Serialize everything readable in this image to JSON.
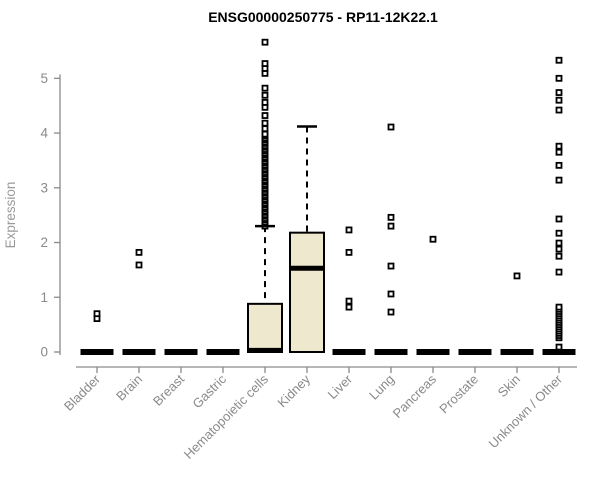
{
  "chart_data": {
    "type": "boxplot",
    "title": "ENSG00000250775 - RP11-12K22.1",
    "ylabel": "Expression",
    "xlabel": "",
    "ylim": [
      0,
      5.7
    ],
    "yticks": [
      0,
      1,
      2,
      3,
      4,
      5
    ],
    "grid": false,
    "legend": false,
    "colors": {
      "axis": "#8a8a8a",
      "box_fill": "#ede8ce",
      "box_stroke": "#000000",
      "outlier_fill": "#ffffff",
      "title": "#000000"
    },
    "categories": [
      "Bladder",
      "Brain",
      "Breast",
      "Gastric",
      "Hematopoietic cells",
      "Kidney",
      "Liver",
      "Lung",
      "Pancreas",
      "Prostate",
      "Skin",
      "Unknown / Other"
    ],
    "boxes": [
      {
        "category": "Bladder",
        "q1": 0,
        "median": 0,
        "q3": 0,
        "whisker_low": 0,
        "whisker_high": 0,
        "outliers": [
          0.61,
          0.7
        ]
      },
      {
        "category": "Brain",
        "q1": 0,
        "median": 0,
        "q3": 0,
        "whisker_low": 0,
        "whisker_high": 0,
        "outliers": [
          1.59,
          1.82
        ]
      },
      {
        "category": "Breast",
        "q1": 0,
        "median": 0,
        "q3": 0,
        "whisker_low": 0,
        "whisker_high": 0,
        "outliers": []
      },
      {
        "category": "Gastric",
        "q1": 0,
        "median": 0,
        "q3": 0,
        "whisker_low": 0,
        "whisker_high": 0,
        "outliers": []
      },
      {
        "category": "Hematopoietic cells",
        "q1": 0,
        "median": 0.03,
        "q3": 0.88,
        "whisker_low": 0,
        "whisker_high": 2.3,
        "outliers": [
          2.3,
          2.34,
          2.37,
          2.41,
          2.44,
          2.48,
          2.51,
          2.55,
          2.58,
          2.62,
          2.65,
          2.69,
          2.72,
          2.76,
          2.79,
          2.83,
          2.86,
          2.9,
          2.93,
          2.97,
          3.0,
          3.04,
          3.07,
          3.11,
          3.14,
          3.18,
          3.21,
          3.25,
          3.28,
          3.32,
          3.35,
          3.39,
          3.42,
          3.46,
          3.49,
          3.53,
          3.56,
          3.6,
          3.63,
          3.67,
          3.7,
          3.74,
          3.77,
          3.81,
          3.84,
          3.88,
          3.91,
          3.95,
          3.98,
          4.08,
          4.18,
          4.32,
          4.47,
          4.56,
          4.69,
          4.82,
          5.09,
          5.18,
          5.27,
          5.66
        ]
      },
      {
        "category": "Kidney",
        "q1": 0,
        "median": 1.53,
        "q3": 2.18,
        "whisker_low": 0,
        "whisker_high": 4.12,
        "outliers": []
      },
      {
        "category": "Liver",
        "q1": 0,
        "median": 0,
        "q3": 0,
        "whisker_low": 0,
        "whisker_high": 0,
        "outliers": [
          0.82,
          0.93,
          1.82,
          2.23
        ]
      },
      {
        "category": "Lung",
        "q1": 0,
        "median": 0,
        "q3": 0,
        "whisker_low": 0,
        "whisker_high": 0,
        "outliers": [
          0.73,
          1.06,
          1.57,
          2.3,
          2.46,
          4.11
        ]
      },
      {
        "category": "Pancreas",
        "q1": 0,
        "median": 0,
        "q3": 0,
        "whisker_low": 0,
        "whisker_high": 0,
        "outliers": [
          2.06
        ]
      },
      {
        "category": "Prostate",
        "q1": 0,
        "median": 0,
        "q3": 0,
        "whisker_low": 0,
        "whisker_high": 0,
        "outliers": []
      },
      {
        "category": "Skin",
        "q1": 0,
        "median": 0,
        "q3": 0,
        "whisker_low": 0,
        "whisker_high": 0,
        "outliers": [
          1.39
        ]
      },
      {
        "category": "Unknown / Other",
        "q1": 0,
        "median": 0,
        "q3": 0,
        "whisker_low": 0,
        "whisker_high": 0,
        "outliers": [
          0.09,
          0.26,
          0.3,
          0.34,
          0.38,
          0.42,
          0.46,
          0.5,
          0.54,
          0.58,
          0.62,
          0.66,
          0.7,
          0.74,
          0.78,
          0.82,
          1.46,
          1.75,
          1.88,
          1.99,
          2.17,
          2.43,
          3.14,
          3.41,
          3.65,
          3.76,
          4.42,
          4.6,
          4.74,
          5.0,
          5.33
        ]
      }
    ]
  }
}
